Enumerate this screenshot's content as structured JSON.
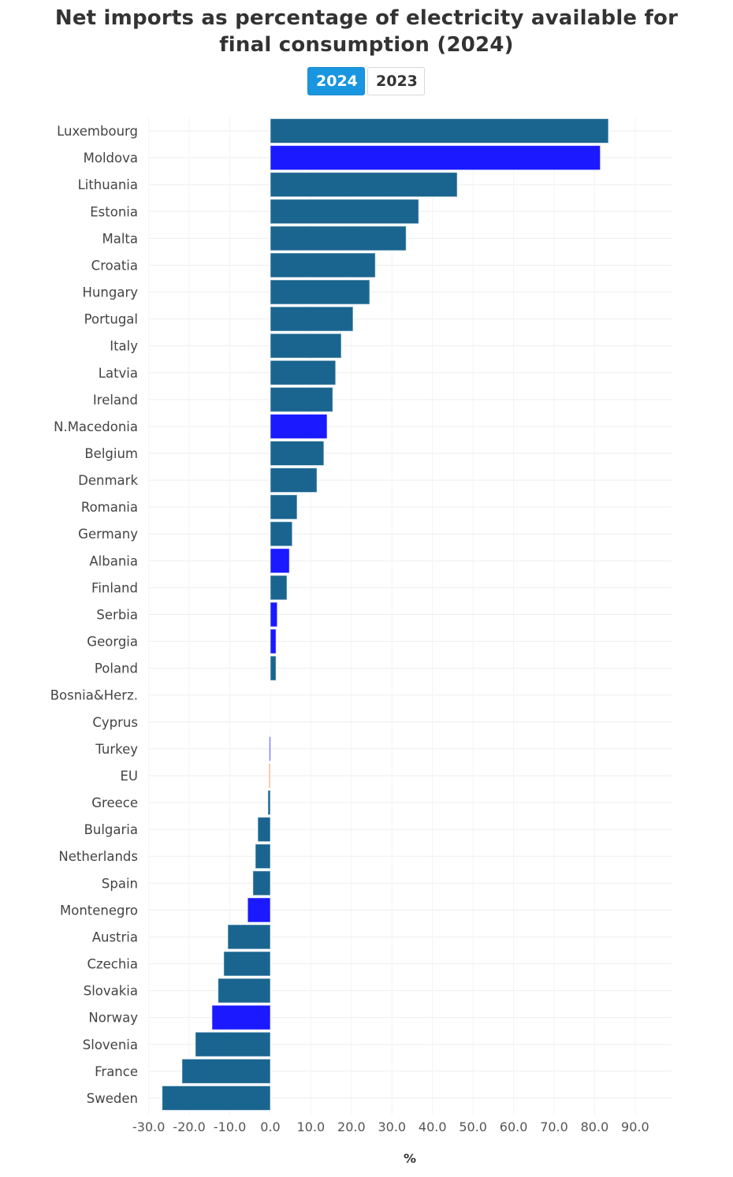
{
  "header": {
    "title_line1": "Net imports as percentage of electricity available for",
    "title_line2": "final consumption (2024)"
  },
  "year_toggle": {
    "options": [
      {
        "label": "2024",
        "active": true
      },
      {
        "label": "2023",
        "active": false
      }
    ]
  },
  "colors": {
    "eu_member": "#1a6590",
    "non_eu": "#1a19ff",
    "eu_aggregate": "#f5b98a",
    "turkey": "#7777ff",
    "gridline": "#eeeeee",
    "button_active": "#1a96e0"
  },
  "chart_data": {
    "type": "bar",
    "orientation": "horizontal",
    "title": "Net imports as percentage of electricity available for final consumption (2024)",
    "xlabel": "%",
    "ylabel": "",
    "xlim": [
      -30,
      100
    ],
    "xticks": [
      -30,
      -20,
      -10,
      0,
      10,
      20,
      30,
      40,
      50,
      60,
      70,
      80,
      90
    ],
    "xtick_labels": [
      "-30.0",
      "-20.0",
      "-10.0",
      "0.0",
      "10.0",
      "20.0",
      "30.0",
      "40.0",
      "50.0",
      "60.0",
      "70.0",
      "80.0",
      "90.0"
    ],
    "grid": true,
    "legend": "none",
    "categories": [
      "Luxembourg",
      "Moldova",
      "Lithuania",
      "Estonia",
      "Malta",
      "Croatia",
      "Hungary",
      "Portugal",
      "Italy",
      "Latvia",
      "Ireland",
      "N.Macedonia",
      "Belgium",
      "Denmark",
      "Romania",
      "Germany",
      "Albania",
      "Finland",
      "Serbia",
      "Georgia",
      "Poland",
      "Bosnia&Herz.",
      "Cyprus",
      "Turkey",
      "EU",
      "Greece",
      "Bulgaria",
      "Netherlands",
      "Spain",
      "Montenegro",
      "Austria",
      "Czechia",
      "Slovakia",
      "Norway",
      "Slovenia",
      "France",
      "Sweden"
    ],
    "values": [
      83.4,
      81.4,
      46.1,
      36.6,
      33.5,
      25.9,
      24.5,
      20.4,
      17.5,
      16.1,
      15.4,
      14.0,
      13.2,
      11.5,
      6.6,
      5.4,
      4.7,
      4.1,
      1.7,
      1.4,
      1.4,
      0.0,
      0.0,
      -0.3,
      -0.4,
      -0.6,
      -3.1,
      -3.7,
      -4.3,
      -5.6,
      -10.5,
      -11.5,
      -12.9,
      -14.4,
      -18.5,
      -21.8,
      -26.7
    ],
    "groups": [
      "eu_member",
      "non_eu",
      "eu_member",
      "eu_member",
      "eu_member",
      "eu_member",
      "eu_member",
      "eu_member",
      "eu_member",
      "eu_member",
      "eu_member",
      "non_eu",
      "eu_member",
      "eu_member",
      "eu_member",
      "eu_member",
      "non_eu",
      "eu_member",
      "non_eu",
      "non_eu",
      "eu_member",
      "non_eu",
      "eu_member",
      "turkey",
      "eu_aggregate",
      "eu_member",
      "eu_member",
      "eu_member",
      "eu_member",
      "non_eu",
      "eu_member",
      "eu_member",
      "eu_member",
      "non_eu",
      "eu_member",
      "eu_member",
      "eu_member"
    ]
  }
}
